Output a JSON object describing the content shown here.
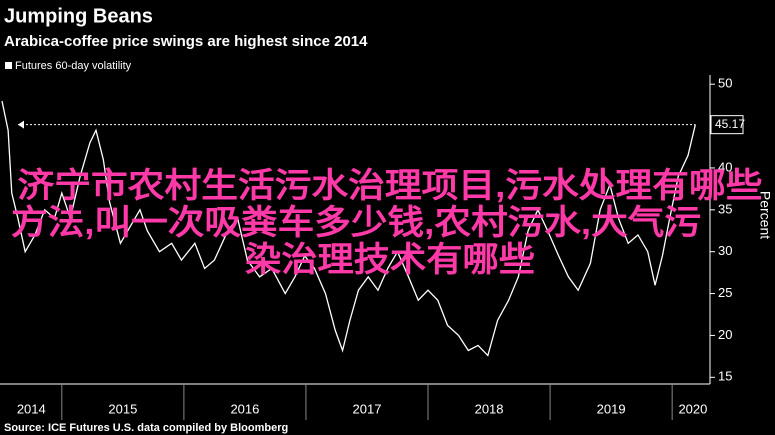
{
  "chart_data": {
    "type": "line",
    "title": "Jumping Beans",
    "subtitle": "Arabica-coffee price swings are highest since 2014",
    "y_label": "Percent",
    "source": "Source: ICE Futures U.S. data compiled by Bloomberg",
    "grid": false,
    "legend": "top-left",
    "annotation": [
      "济宁市农村生活污水治理项目,污水处理有哪些",
      "方法,叫一次吸粪车多少钱,农村污水,大气污",
      "染治理技术有哪些"
    ],
    "annotation_color": "#ff3aa8",
    "xlim": [
      2014.51,
      2020.31
    ],
    "ylim": [
      14.2,
      51.1
    ],
    "yticks": [
      15,
      20,
      25,
      30,
      35,
      40,
      45,
      50
    ],
    "xticks": [
      {
        "value": 2014.75,
        "label": "2014"
      },
      {
        "value": 2015.5,
        "label": "2015"
      },
      {
        "value": 2016.5,
        "label": "2016"
      },
      {
        "value": 2017.5,
        "label": "2017"
      },
      {
        "value": 2018.5,
        "label": "2018"
      },
      {
        "value": 2019.5,
        "label": "2019"
      },
      {
        "value": 2020.17,
        "label": "2020"
      }
    ],
    "series": [
      {
        "name": "Futures 60-day volatility",
        "color": "#ffffff",
        "x": [
          2014.51,
          2014.56,
          2014.59,
          2014.64,
          2014.7,
          2014.78,
          2014.86,
          2014.94,
          2015.0,
          2015.07,
          2015.15,
          2015.23,
          2015.28,
          2015.34,
          2015.39,
          2015.48,
          2015.56,
          2015.64,
          2015.7,
          2015.8,
          2015.9,
          2015.98,
          2016.09,
          2016.17,
          2016.25,
          2016.36,
          2016.44,
          2016.52,
          2016.62,
          2016.72,
          2016.83,
          2016.91,
          2016.99,
          2017.07,
          2017.16,
          2017.24,
          2017.3,
          2017.36,
          2017.43,
          2017.51,
          2017.59,
          2017.67,
          2017.75,
          2017.84,
          2017.92,
          2018.0,
          2018.08,
          2018.16,
          2018.25,
          2018.33,
          2018.41,
          2018.49,
          2018.57,
          2018.66,
          2018.74,
          2018.82,
          2018.9,
          2018.98,
          2019.07,
          2019.15,
          2019.23,
          2019.33,
          2019.41,
          2019.49,
          2019.56,
          2019.64,
          2019.72,
          2019.8,
          2019.86,
          2019.92,
          2019.98,
          2020.05,
          2020.13,
          2020.19
        ],
        "values": [
          48,
          44.5,
          37,
          34,
          30,
          32,
          35,
          34,
          37,
          34,
          39,
          43,
          44.5,
          41,
          36,
          31,
          33,
          35,
          32.5,
          30,
          31,
          29,
          31,
          28,
          29,
          32.5,
          34,
          29,
          27,
          28,
          25,
          27,
          29.5,
          28,
          25,
          20.6,
          18.2,
          21.8,
          25.4,
          27,
          25.4,
          28,
          30,
          27,
          24.2,
          25.4,
          24.2,
          21.2,
          20,
          18.2,
          18.8,
          17.6,
          21.8,
          24.2,
          27,
          32.5,
          35,
          32.5,
          29.5,
          27,
          25.4,
          28.6,
          35,
          38,
          34,
          31,
          32,
          30,
          26,
          29.5,
          34,
          39,
          41.5,
          45.17
        ]
      }
    ]
  }
}
